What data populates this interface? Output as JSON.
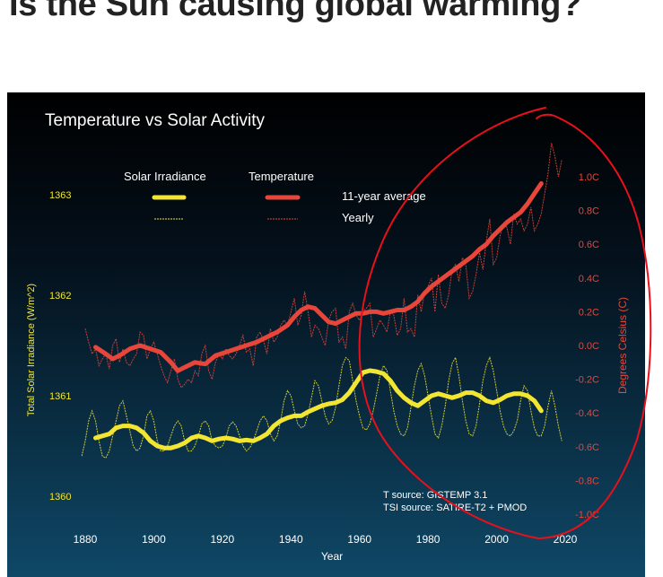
{
  "page": {
    "headline": "Is the Sun causing global warming?"
  },
  "colors": {
    "solar": "#f2e632",
    "temperature": "#e8463a",
    "annotation": "#e8101a",
    "bg_top": "#000000",
    "bg_bottom": "#0f4867",
    "text": "#ffffff"
  },
  "chart_data": {
    "type": "line",
    "title": "Temperature vs Solar Activity",
    "xlabel": "Year",
    "ylabel_left": "Total Solar Irradiance (W/m^2)",
    "ylabel_right": "Degrees Celsius (C)",
    "xlim": [
      1877,
      2025
    ],
    "ylim_left": [
      1359.85,
      1363.4
    ],
    "ylim_right": [
      -1.1,
      1.35
    ],
    "x_ticks": [
      "1880",
      "1900",
      "1920",
      "1940",
      "1960",
      "1980",
      "2000",
      "2020"
    ],
    "left_ticks": [
      "1360",
      "1361",
      "1362",
      "1363"
    ],
    "right_ticks": [
      "-1.0C",
      "-0.8C",
      "-0.6C",
      "-0.4C",
      "-0.2C",
      "0.0C",
      "0.2C",
      "0.4C",
      "0.6C",
      "0.8C",
      "1.0C"
    ],
    "legend": {
      "solar_label": "Solar Irradiance",
      "temperature_label": "Temperature",
      "avg_label": "11-year average",
      "yearly_label": "Yearly"
    },
    "sources": {
      "t_source": "T source: GISTEMP 3.1",
      "tsi_source": "TSI source: SATIRE-T2 + PMOD"
    },
    "series": [
      {
        "name": "Temperature 11-year average",
        "axis": "right",
        "x": [
          1883,
          1886,
          1888,
          1890,
          1893,
          1896,
          1899,
          1902,
          1905,
          1907,
          1909,
          1912,
          1915,
          1918,
          1921,
          1924,
          1927,
          1930,
          1933,
          1936,
          1939,
          1941,
          1943,
          1945,
          1947,
          1949,
          1951,
          1953,
          1955,
          1957,
          1959,
          1961,
          1963,
          1965,
          1967,
          1969,
          1971,
          1973,
          1975,
          1977,
          1979,
          1981,
          1983,
          1985,
          1987,
          1989,
          1991,
          1993,
          1995,
          1997,
          1999,
          2001,
          2003,
          2005,
          2007,
          2009,
          2011,
          2013
        ],
        "values": [
          -0.01,
          -0.05,
          -0.08,
          -0.06,
          -0.02,
          0.0,
          -0.02,
          -0.04,
          -0.1,
          -0.15,
          -0.13,
          -0.1,
          -0.11,
          -0.06,
          -0.04,
          -0.02,
          0.0,
          0.02,
          0.05,
          0.08,
          0.12,
          0.17,
          0.21,
          0.23,
          0.22,
          0.18,
          0.14,
          0.13,
          0.15,
          0.17,
          0.19,
          0.19,
          0.2,
          0.2,
          0.19,
          0.2,
          0.21,
          0.21,
          0.23,
          0.26,
          0.31,
          0.35,
          0.38,
          0.41,
          0.44,
          0.47,
          0.5,
          0.53,
          0.57,
          0.6,
          0.65,
          0.69,
          0.73,
          0.76,
          0.79,
          0.84,
          0.9,
          0.96
        ]
      },
      {
        "name": "Temperature yearly",
        "axis": "right",
        "x": [
          1880,
          1881,
          1882,
          1883,
          1884,
          1885,
          1886,
          1887,
          1888,
          1889,
          1890,
          1891,
          1892,
          1893,
          1894,
          1895,
          1896,
          1897,
          1898,
          1899,
          1900,
          1901,
          1902,
          1903,
          1904,
          1905,
          1906,
          1907,
          1908,
          1909,
          1910,
          1911,
          1912,
          1913,
          1914,
          1915,
          1916,
          1917,
          1918,
          1919,
          1920,
          1921,
          1922,
          1923,
          1924,
          1925,
          1926,
          1927,
          1928,
          1929,
          1930,
          1931,
          1932,
          1933,
          1934,
          1935,
          1936,
          1937,
          1938,
          1939,
          1940,
          1941,
          1942,
          1943,
          1944,
          1945,
          1946,
          1947,
          1948,
          1949,
          1950,
          1951,
          1952,
          1953,
          1954,
          1955,
          1956,
          1957,
          1958,
          1959,
          1960,
          1961,
          1962,
          1963,
          1964,
          1965,
          1966,
          1967,
          1968,
          1969,
          1970,
          1971,
          1972,
          1973,
          1974,
          1975,
          1976,
          1977,
          1978,
          1979,
          1980,
          1981,
          1982,
          1983,
          1984,
          1985,
          1986,
          1987,
          1988,
          1989,
          1990,
          1991,
          1992,
          1993,
          1994,
          1995,
          1996,
          1997,
          1998,
          1999,
          2000,
          2001,
          2002,
          2003,
          2004,
          2005,
          2006,
          2007,
          2008,
          2009,
          2010,
          2011,
          2012,
          2013,
          2014,
          2015,
          2016,
          2017,
          2018,
          2019
        ],
        "values": [
          0.1,
          0.02,
          -0.05,
          -0.02,
          -0.12,
          -0.08,
          -0.05,
          -0.14,
          0.0,
          0.04,
          -0.1,
          -0.02,
          -0.1,
          -0.12,
          -0.08,
          -0.05,
          0.08,
          0.06,
          -0.08,
          -0.02,
          0.02,
          -0.05,
          -0.12,
          -0.18,
          -0.22,
          -0.15,
          -0.08,
          -0.2,
          -0.25,
          -0.23,
          -0.2,
          -0.22,
          -0.15,
          -0.18,
          -0.05,
          0.0,
          -0.15,
          -0.2,
          -0.1,
          -0.05,
          -0.08,
          -0.02,
          -0.06,
          -0.08,
          -0.05,
          0.0,
          0.06,
          -0.04,
          -0.02,
          -0.12,
          0.05,
          0.08,
          0.03,
          -0.05,
          0.1,
          0.02,
          0.05,
          0.12,
          0.15,
          0.12,
          0.2,
          0.28,
          0.12,
          0.18,
          0.32,
          0.2,
          0.05,
          0.12,
          0.1,
          0.05,
          0.0,
          0.15,
          0.2,
          0.22,
          0.02,
          0.05,
          -0.02,
          0.2,
          0.25,
          0.18,
          0.15,
          0.2,
          0.22,
          0.25,
          0.05,
          0.1,
          0.15,
          0.12,
          0.08,
          0.2,
          0.18,
          0.06,
          0.1,
          0.28,
          0.08,
          0.1,
          0.05,
          0.3,
          0.2,
          0.32,
          0.35,
          0.4,
          0.2,
          0.42,
          0.25,
          0.22,
          0.3,
          0.45,
          0.48,
          0.38,
          0.52,
          0.48,
          0.28,
          0.32,
          0.42,
          0.55,
          0.45,
          0.62,
          0.75,
          0.48,
          0.52,
          0.65,
          0.72,
          0.7,
          0.6,
          0.78,
          0.72,
          0.75,
          0.68,
          0.72,
          0.82,
          0.68,
          0.72,
          0.78,
          0.9,
          1.02,
          1.2,
          1.12,
          1.0,
          1.1
        ]
      },
      {
        "name": "Solar Irradiance 11-year average",
        "axis": "left",
        "x": [
          1883,
          1885,
          1887,
          1889,
          1891,
          1893,
          1895,
          1897,
          1899,
          1901,
          1903,
          1905,
          1907,
          1909,
          1911,
          1913,
          1915,
          1917,
          1919,
          1921,
          1923,
          1925,
          1927,
          1929,
          1931,
          1933,
          1935,
          1937,
          1939,
          1941,
          1943,
          1945,
          1947,
          1949,
          1951,
          1953,
          1955,
          1957,
          1959,
          1961,
          1963,
          1965,
          1967,
          1969,
          1971,
          1973,
          1975,
          1977,
          1979,
          1981,
          1983,
          1985,
          1987,
          1989,
          1991,
          1993,
          1995,
          1997,
          1999,
          2001,
          2003,
          2005,
          2007,
          2009,
          2011,
          2013
        ],
        "values": [
          1360.58,
          1360.6,
          1360.62,
          1360.68,
          1360.7,
          1360.7,
          1360.68,
          1360.63,
          1360.55,
          1360.5,
          1360.48,
          1360.48,
          1360.5,
          1360.53,
          1360.58,
          1360.6,
          1360.58,
          1360.55,
          1360.57,
          1360.58,
          1360.57,
          1360.55,
          1360.56,
          1360.55,
          1360.58,
          1360.62,
          1360.7,
          1360.75,
          1360.78,
          1360.8,
          1360.8,
          1360.84,
          1360.87,
          1360.9,
          1360.92,
          1360.93,
          1360.96,
          1361.03,
          1361.13,
          1361.23,
          1361.25,
          1361.24,
          1361.22,
          1361.15,
          1361.05,
          1360.98,
          1360.93,
          1360.9,
          1360.95,
          1361.0,
          1361.02,
          1361.0,
          1360.98,
          1361.0,
          1361.03,
          1361.03,
          1361.0,
          1360.95,
          1360.93,
          1360.96,
          1361.0,
          1361.02,
          1361.02,
          1361.0,
          1360.95,
          1360.85
        ]
      },
      {
        "name": "Solar Irradiance yearly",
        "axis": "left",
        "x": [
          1879,
          1880,
          1881,
          1882,
          1883,
          1884,
          1885,
          1886,
          1887,
          1888,
          1889,
          1890,
          1891,
          1892,
          1893,
          1894,
          1895,
          1896,
          1897,
          1898,
          1899,
          1900,
          1901,
          1902,
          1903,
          1904,
          1905,
          1906,
          1907,
          1908,
          1909,
          1910,
          1911,
          1912,
          1913,
          1914,
          1915,
          1916,
          1917,
          1918,
          1919,
          1920,
          1921,
          1922,
          1923,
          1924,
          1925,
          1926,
          1927,
          1928,
          1929,
          1930,
          1931,
          1932,
          1933,
          1934,
          1935,
          1936,
          1937,
          1938,
          1939,
          1940,
          1941,
          1942,
          1943,
          1944,
          1945,
          1946,
          1947,
          1948,
          1949,
          1950,
          1951,
          1952,
          1953,
          1954,
          1955,
          1956,
          1957,
          1958,
          1959,
          1960,
          1961,
          1962,
          1963,
          1964,
          1965,
          1966,
          1967,
          1968,
          1969,
          1970,
          1971,
          1972,
          1973,
          1974,
          1975,
          1976,
          1977,
          1978,
          1979,
          1980,
          1981,
          1982,
          1983,
          1984,
          1985,
          1986,
          1987,
          1988,
          1989,
          1990,
          1991,
          1992,
          1993,
          1994,
          1995,
          1996,
          1997,
          1998,
          1999,
          2000,
          2001,
          2002,
          2003,
          2004,
          2005,
          2006,
          2007,
          2008,
          2009,
          2010,
          2011,
          2012,
          2013,
          2014,
          2015,
          2016,
          2017,
          2018,
          2019
        ],
        "values": [
          1360.4,
          1360.55,
          1360.75,
          1360.85,
          1360.75,
          1360.55,
          1360.4,
          1360.38,
          1360.45,
          1360.6,
          1360.75,
          1360.9,
          1360.95,
          1360.8,
          1360.65,
          1360.5,
          1360.45,
          1360.48,
          1360.6,
          1360.8,
          1360.85,
          1360.75,
          1360.55,
          1360.45,
          1360.45,
          1360.5,
          1360.6,
          1360.7,
          1360.75,
          1360.7,
          1360.55,
          1360.45,
          1360.45,
          1360.5,
          1360.6,
          1360.72,
          1360.75,
          1360.7,
          1360.55,
          1360.5,
          1360.48,
          1360.5,
          1360.58,
          1360.7,
          1360.74,
          1360.7,
          1360.6,
          1360.5,
          1360.45,
          1360.48,
          1360.55,
          1360.65,
          1360.75,
          1360.8,
          1360.75,
          1360.62,
          1360.55,
          1360.6,
          1360.75,
          1360.95,
          1361.05,
          1361.0,
          1360.85,
          1360.72,
          1360.68,
          1360.7,
          1360.82,
          1360.98,
          1361.15,
          1361.1,
          1360.95,
          1360.8,
          1360.72,
          1360.75,
          1360.88,
          1361.1,
          1361.3,
          1361.38,
          1361.35,
          1361.15,
          1360.95,
          1360.8,
          1360.68,
          1360.66,
          1360.72,
          1360.85,
          1361.02,
          1361.2,
          1361.3,
          1361.25,
          1361.05,
          1360.85,
          1360.7,
          1360.62,
          1360.6,
          1360.68,
          1360.88,
          1361.1,
          1361.25,
          1361.32,
          1361.2,
          1361.0,
          1360.8,
          1360.62,
          1360.58,
          1360.7,
          1360.9,
          1361.15,
          1361.32,
          1361.38,
          1361.2,
          1360.95,
          1360.75,
          1360.62,
          1360.6,
          1360.7,
          1360.92,
          1361.15,
          1361.3,
          1361.38,
          1361.25,
          1361.05,
          1360.85,
          1360.7,
          1360.62,
          1360.6,
          1360.65,
          1360.75,
          1360.95,
          1361.1,
          1361.05,
          1360.85,
          1360.68,
          1360.6,
          1360.6,
          1360.7,
          1360.9,
          1361.05,
          1360.9,
          1360.7,
          1360.55
        ]
      }
    ]
  }
}
